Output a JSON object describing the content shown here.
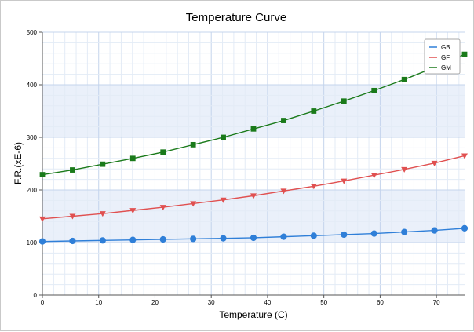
{
  "chart_data": {
    "type": "line",
    "title": "Temperature Curve",
    "xlabel": "Temperature (C)",
    "ylabel": "F.R.(xE-6)",
    "xlim": [
      0,
      75
    ],
    "ylim": [
      0,
      500
    ],
    "xticks": [
      0,
      10,
      20,
      30,
      40,
      50,
      60,
      70
    ],
    "yticks": [
      0,
      100,
      200,
      300,
      400,
      500
    ],
    "grid": true,
    "legend_position": "top-right",
    "x": [
      0,
      5.36,
      10.71,
      16.07,
      21.43,
      26.79,
      32.14,
      37.5,
      42.86,
      48.21,
      53.57,
      58.93,
      64.29,
      69.64,
      75
    ],
    "series": [
      {
        "name": "GB",
        "color": "#2f7fd8",
        "marker": "circle",
        "values": [
          102,
          103,
          104,
          105,
          106,
          107,
          108,
          109,
          111,
          113,
          115,
          117,
          120,
          123,
          127
        ]
      },
      {
        "name": "GF",
        "color": "#e05050",
        "marker": "triangle-down",
        "values": [
          145,
          150,
          155,
          161,
          167,
          174,
          181,
          189,
          198,
          207,
          217,
          228,
          239,
          251,
          265
        ]
      },
      {
        "name": "GM",
        "color": "#1a7a1a",
        "marker": "square",
        "values": [
          229,
          238,
          249,
          260,
          272,
          286,
          300,
          316,
          332,
          350,
          369,
          389,
          410,
          433,
          458
        ]
      }
    ]
  }
}
